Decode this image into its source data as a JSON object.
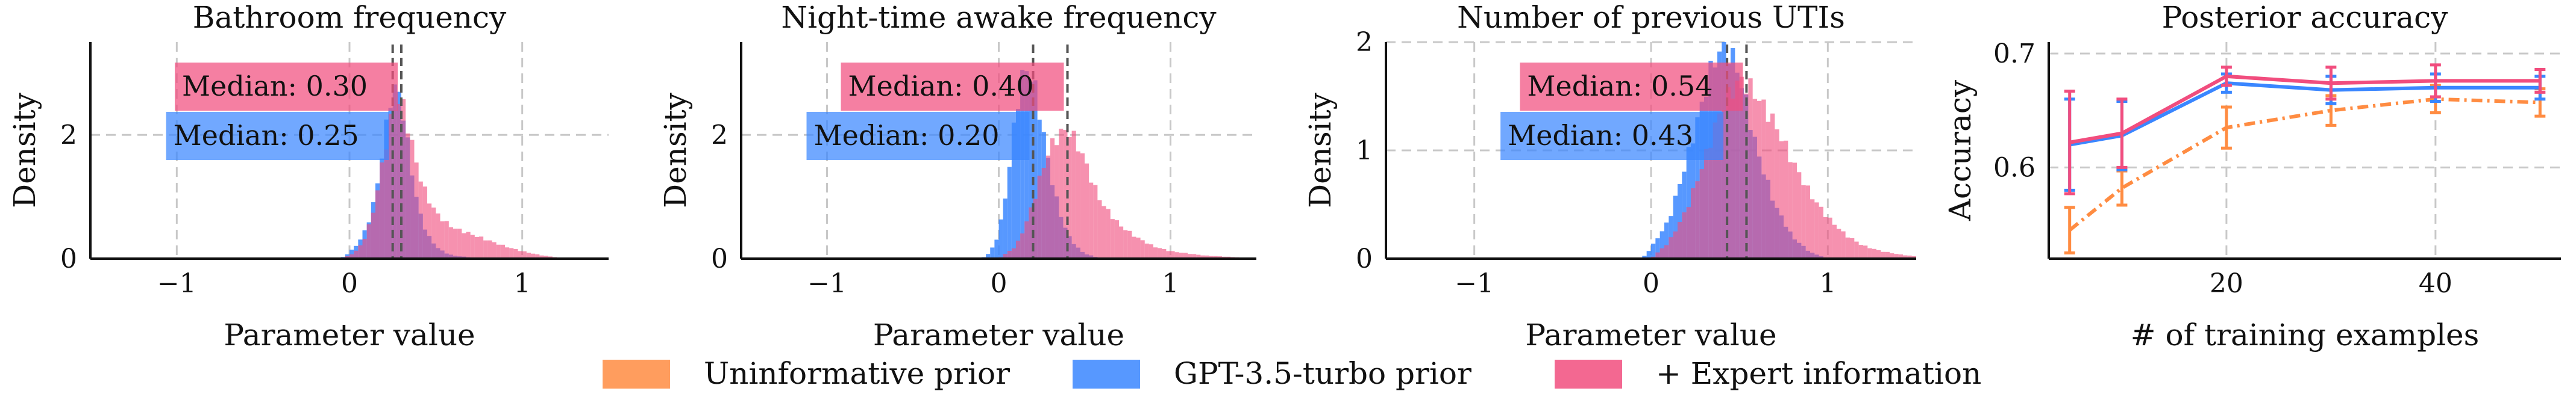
{
  "colors": {
    "uninformative": "#FF8C42",
    "gpt": "#3A86FF",
    "expert": "#F14D7E",
    "overlap": "#9B3F8C",
    "grid": "#c8c8c8",
    "axis": "#111111",
    "median_line": "#555555"
  },
  "legend": {
    "items": [
      {
        "label": "Uninformative prior",
        "color": "#FF8C42"
      },
      {
        "label": "GPT-3.5-turbo prior",
        "color": "#3A86FF"
      },
      {
        "label": "+ Expert information",
        "color": "#F14D7E"
      }
    ]
  },
  "chart_data": [
    {
      "type": "area",
      "title": "Bathroom frequency",
      "xlabel": "Parameter value",
      "ylabel": "Density",
      "xlim": [
        -1.5,
        1.5
      ],
      "ylim": [
        0,
        3.5
      ],
      "xticks": [
        -1,
        0,
        1
      ],
      "xtick_labels": [
        "−1",
        "0",
        "1"
      ],
      "yticks": [
        0,
        2
      ],
      "ytick_labels": [
        "0",
        "2"
      ],
      "grid": true,
      "series": [
        {
          "name": "GPT-3.5-turbo prior",
          "color": "#3A86FF",
          "median": 0.25,
          "median_label": "Median: 0.25",
          "x": [
            -0.05,
            0.0,
            0.05,
            0.1,
            0.15,
            0.2,
            0.25,
            0.3,
            0.35,
            0.4,
            0.45,
            0.5,
            0.55,
            0.6,
            0.7,
            0.8,
            0.9
          ],
          "density": [
            0.0,
            0.1,
            0.25,
            0.5,
            1.0,
            1.9,
            2.8,
            2.6,
            1.6,
            0.8,
            0.4,
            0.2,
            0.1,
            0.05,
            0.02,
            0.01,
            0.0
          ]
        },
        {
          "name": "+ Expert information",
          "color": "#F14D7E",
          "median": 0.3,
          "median_label": "Median: 0.30",
          "x": [
            -0.05,
            0.0,
            0.05,
            0.1,
            0.15,
            0.2,
            0.25,
            0.3,
            0.35,
            0.4,
            0.45,
            0.5,
            0.55,
            0.6,
            0.7,
            0.8,
            0.9,
            1.0,
            1.1,
            1.2
          ],
          "density": [
            0.0,
            0.05,
            0.15,
            0.4,
            0.9,
            1.7,
            2.4,
            2.6,
            2.0,
            1.4,
            1.0,
            0.75,
            0.6,
            0.5,
            0.4,
            0.3,
            0.2,
            0.12,
            0.06,
            0.02
          ]
        }
      ]
    },
    {
      "type": "area",
      "title": "Night-time awake frequency",
      "xlabel": "Parameter value",
      "ylabel": "Density",
      "xlim": [
        -1.5,
        1.5
      ],
      "ylim": [
        0,
        3.5
      ],
      "xticks": [
        -1,
        0,
        1
      ],
      "xtick_labels": [
        "−1",
        "0",
        "1"
      ],
      "yticks": [
        0,
        2
      ],
      "ytick_labels": [
        "0",
        "2"
      ],
      "grid": true,
      "series": [
        {
          "name": "GPT-3.5-turbo prior",
          "color": "#3A86FF",
          "median": 0.2,
          "median_label": "Median: 0.20",
          "x": [
            -0.1,
            -0.05,
            0.0,
            0.05,
            0.1,
            0.15,
            0.2,
            0.25,
            0.3,
            0.35,
            0.4,
            0.45,
            0.5,
            0.6
          ],
          "density": [
            0.0,
            0.1,
            0.4,
            1.2,
            2.4,
            3.1,
            2.9,
            2.2,
            1.4,
            0.8,
            0.4,
            0.2,
            0.08,
            0.0
          ]
        },
        {
          "name": "+ Expert information",
          "color": "#F14D7E",
          "median": 0.4,
          "median_label": "Median: 0.40",
          "x": [
            0.0,
            0.1,
            0.15,
            0.2,
            0.25,
            0.3,
            0.35,
            0.4,
            0.45,
            0.5,
            0.55,
            0.6,
            0.7,
            0.8,
            0.9,
            1.0,
            1.2,
            1.4
          ],
          "density": [
            0.0,
            0.2,
            0.5,
            0.9,
            1.4,
            1.8,
            2.0,
            2.1,
            1.9,
            1.6,
            1.2,
            0.9,
            0.55,
            0.35,
            0.2,
            0.12,
            0.05,
            0.02
          ]
        }
      ]
    },
    {
      "type": "area",
      "title": "Number of previous UTIs",
      "xlabel": "Parameter value",
      "ylabel": "Density",
      "xlim": [
        -1.5,
        1.5
      ],
      "ylim": [
        0,
        2.0
      ],
      "xticks": [
        -1,
        0,
        1
      ],
      "xtick_labels": [
        "−1",
        "0",
        "1"
      ],
      "yticks": [
        0,
        1,
        2
      ],
      "ytick_labels": [
        "0",
        "1",
        "2"
      ],
      "grid": true,
      "series": [
        {
          "name": "GPT-3.5-turbo prior",
          "color": "#3A86FF",
          "median": 0.43,
          "median_label": "Median: 0.43",
          "x": [
            -0.05,
            0.0,
            0.1,
            0.2,
            0.3,
            0.35,
            0.4,
            0.45,
            0.5,
            0.55,
            0.6,
            0.7,
            0.8,
            0.9,
            1.0
          ],
          "density": [
            0.0,
            0.1,
            0.35,
            0.9,
            1.5,
            1.8,
            1.95,
            1.9,
            1.7,
            1.35,
            1.0,
            0.5,
            0.2,
            0.06,
            0.0
          ]
        },
        {
          "name": "+ Expert information",
          "color": "#F14D7E",
          "median": 0.54,
          "median_label": "Median: 0.54",
          "x": [
            0.0,
            0.1,
            0.2,
            0.3,
            0.4,
            0.5,
            0.55,
            0.6,
            0.7,
            0.8,
            0.9,
            1.0,
            1.1,
            1.2,
            1.3,
            1.4,
            1.5
          ],
          "density": [
            0.0,
            0.15,
            0.45,
            0.9,
            1.4,
            1.65,
            1.6,
            1.5,
            1.25,
            0.9,
            0.6,
            0.38,
            0.22,
            0.12,
            0.07,
            0.04,
            0.02
          ]
        }
      ]
    },
    {
      "type": "line",
      "title": "Posterior accuracy",
      "xlabel": "# of training examples",
      "ylabel": "Accuracy",
      "xlim": [
        3,
        52
      ],
      "ylim": [
        0.52,
        0.71
      ],
      "xticks": [
        20,
        40
      ],
      "xtick_labels": [
        "20",
        "40"
      ],
      "yticks": [
        0.6,
        0.7
      ],
      "ytick_labels": [
        "0.6",
        "0.7"
      ],
      "grid": true,
      "x": [
        5,
        10,
        20,
        30,
        40,
        50
      ],
      "series": [
        {
          "name": "Uninformative prior",
          "color": "#FF8C42",
          "dashed": true,
          "values": [
            0.545,
            0.582,
            0.635,
            0.65,
            0.66,
            0.657
          ],
          "err": [
            0.02,
            0.015,
            0.018,
            0.013,
            0.012,
            0.012
          ]
        },
        {
          "name": "GPT-3.5-turbo prior",
          "color": "#3A86FF",
          "dashed": false,
          "values": [
            0.62,
            0.628,
            0.674,
            0.668,
            0.67,
            0.67
          ],
          "err": [
            0.04,
            0.03,
            0.008,
            0.012,
            0.012,
            0.01
          ]
        },
        {
          "name": "+ Expert information",
          "color": "#F14D7E",
          "dashed": false,
          "values": [
            0.622,
            0.63,
            0.68,
            0.674,
            0.676,
            0.676
          ],
          "err": [
            0.045,
            0.03,
            0.008,
            0.014,
            0.014,
            0.01
          ]
        }
      ]
    }
  ]
}
